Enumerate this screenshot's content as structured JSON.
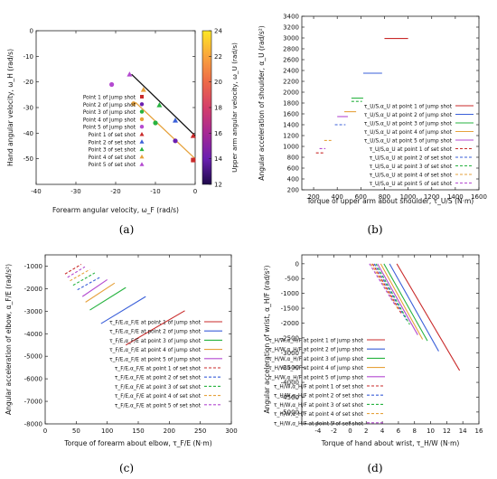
{
  "captions": [
    "(a)",
    "(b)",
    "(c)",
    "(d)"
  ],
  "chart_data": [
    {
      "type": "scatter",
      "panel": "(a)",
      "xlabel": "Forearm angular velocity, ω_F (rad/s)",
      "ylabel": "Hand angular velocity, ω_H (rad/s)",
      "xlim": [
        -40,
        0
      ],
      "ylim": [
        -60,
        0
      ],
      "xticks": [
        "-40",
        "-30",
        "-20",
        "-10",
        "0"
      ],
      "yticks": [
        "-50",
        "-40",
        "-30",
        "-20",
        "-10",
        "0"
      ],
      "colorbar": {
        "label": "Upper arm angular velocity, ω_U (rad/s)",
        "range": [
          12,
          24
        ],
        "ticks": [
          "24",
          "22",
          "20",
          "18",
          "16",
          "14",
          "12"
        ],
        "colors": [
          "#fde725",
          "#f9a43d",
          "#ed6a48",
          "#d43f6a",
          "#a62895",
          "#6a1fb0",
          "#1e0a4a"
        ]
      },
      "lines": [
        {
          "color": "#111111",
          "points": [
            [
              -16,
              -17
            ],
            [
              0,
              -41
            ]
          ]
        },
        {
          "color": "#e6a23c",
          "points": [
            [
              -15,
              -28
            ],
            [
              0,
              -50
            ]
          ]
        }
      ],
      "series": [
        {
          "name": "Point 1 of jump shot",
          "marker": "square",
          "color": "#c92a2a",
          "x": -0.5,
          "y": -50.5
        },
        {
          "name": "Point 2 of jump shot",
          "marker": "circle",
          "color": "#6a1fb0",
          "x": -5,
          "y": -43
        },
        {
          "name": "Point 3 of jump shot",
          "marker": "circle",
          "color": "#27b340",
          "x": -10,
          "y": -36
        },
        {
          "name": "Point 4 of jump shot",
          "marker": "circle",
          "color": "#e6a23c",
          "x": -15.5,
          "y": -28.5
        },
        {
          "name": "Point 5 of jump shot",
          "marker": "circle",
          "color": "#b44ad0",
          "x": -21,
          "y": -21
        },
        {
          "name": "Point 1 of set shot",
          "marker": "triangle",
          "color": "#c92a2a",
          "x": -0.5,
          "y": -41
        },
        {
          "name": "Point 2 of set shot",
          "marker": "triangle",
          "color": "#3a5fd9",
          "x": -5,
          "y": -35
        },
        {
          "name": "Point 3 of set shot",
          "marker": "triangle",
          "color": "#27b340",
          "x": -9,
          "y": -29
        },
        {
          "name": "Point 4 of set shot",
          "marker": "triangle",
          "color": "#e6a23c",
          "x": -13,
          "y": -23
        },
        {
          "name": "Point 5 of set shot",
          "marker": "triangle",
          "color": "#b44ad0",
          "x": -16.5,
          "y": -17
        }
      ]
    },
    {
      "type": "line",
      "panel": "(b)",
      "xlabel": "Torque of upper arm about shoulder, τ_U/S (N·m)",
      "ylabel": "Angular acceleration of shoulder, α_U (rad/s²)",
      "xlim": [
        100,
        1600
      ],
      "ylim": [
        200,
        3400
      ],
      "xticks": [
        "200",
        "400",
        "600",
        "800",
        "1000",
        "1200",
        "1400",
        "1600"
      ],
      "yticks": [
        "200",
        "400",
        "600",
        "800",
        "1000",
        "1200",
        "1400",
        "1600",
        "1800",
        "2000",
        "2200",
        "2400",
        "2600",
        "2800",
        "3000",
        "3200",
        "3400"
      ],
      "legend": "right",
      "series": [
        {
          "name": "τ_U/S,α_U at point 1 of jump shot",
          "color": "#c92a2a",
          "dash": false,
          "points": [
            [
              800,
              2990
            ],
            [
              1000,
              2990
            ]
          ]
        },
        {
          "name": "τ_U/S,α_U at point 2 of jump shot",
          "color": "#3a5fd9",
          "dash": false,
          "points": [
            [
              620,
              2350
            ],
            [
              780,
              2350
            ]
          ]
        },
        {
          "name": "τ_U/S,α_U at point 3 of jump shot",
          "color": "#27b340",
          "dash": false,
          "points": [
            [
              520,
              1890
            ],
            [
              620,
              1890
            ]
          ]
        },
        {
          "name": "τ_U/S,α_U at point 4 of jump shot",
          "color": "#e6a23c",
          "dash": false,
          "points": [
            [
              460,
              1640
            ],
            [
              560,
              1640
            ]
          ]
        },
        {
          "name": "τ_U/S,α_U at point 5 of jump shot",
          "color": "#b44ad0",
          "dash": false,
          "points": [
            [
              400,
              1550
            ],
            [
              490,
              1550
            ]
          ]
        },
        {
          "name": "τ_U/S,α_U at point 1 of set shot",
          "color": "#c92a2a",
          "dash": true,
          "points": [
            [
              220,
              880
            ],
            [
              290,
              880
            ]
          ]
        },
        {
          "name": "τ_U/S,α_U at point 2 of set shot",
          "color": "#3a5fd9",
          "dash": true,
          "points": [
            [
              380,
              1400
            ],
            [
              470,
              1400
            ]
          ]
        },
        {
          "name": "τ_U/S,α_U at point 3 of set shot",
          "color": "#27b340",
          "dash": true,
          "points": [
            [
              520,
              1830
            ],
            [
              610,
              1830
            ]
          ]
        },
        {
          "name": "τ_U/S,α_U at point 4 of set shot",
          "color": "#e6a23c",
          "dash": true,
          "points": [
            [
              290,
              1110
            ],
            [
              350,
              1110
            ]
          ]
        },
        {
          "name": "τ_U/S,α_U at point 5 of set shot",
          "color": "#b44ad0",
          "dash": true,
          "points": [
            [
              250,
              960
            ],
            [
              300,
              960
            ]
          ]
        }
      ]
    },
    {
      "type": "line",
      "panel": "(c)",
      "xlabel": "Torque of forearm about elbow, τ_F/E (N·m)",
      "ylabel": "Angular acceleration of elbow, α_F/E (rad/s²)",
      "xlim": [
        0,
        300
      ],
      "ylim": [
        -8000,
        -500
      ],
      "xticks": [
        "0",
        "50",
        "100",
        "150",
        "200",
        "250",
        "300"
      ],
      "yticks": [
        "-1000",
        "-2000",
        "-3000",
        "-4000",
        "-5000",
        "-6000",
        "-7000",
        "-8000"
      ],
      "legend": "lower-right",
      "series": [
        {
          "name": "τ_F/E,α_F/E at point 1 of jump shot",
          "color": "#c92a2a",
          "dash": false,
          "points": [
            [
              130,
              -4500
            ],
            [
              225,
              -2980
            ]
          ]
        },
        {
          "name": "τ_F/E,α_F/E at point 2 of jump shot",
          "color": "#3a5fd9",
          "dash": false,
          "points": [
            [
              90,
              -3550
            ],
            [
              162,
              -2350
            ]
          ]
        },
        {
          "name": "τ_F/E,α_F/E at point 3 of jump shot",
          "color": "#27b340",
          "dash": false,
          "points": [
            [
              72,
              -2950
            ],
            [
              130,
              -1950
            ]
          ]
        },
        {
          "name": "τ_F/E,α_F/E at point 4 of jump shot",
          "color": "#e6a23c",
          "dash": false,
          "points": [
            [
              65,
              -2600
            ],
            [
              112,
              -1750
            ]
          ]
        },
        {
          "name": "τ_F/E,α_F/E at point 5 of jump shot",
          "color": "#b44ad0",
          "dash": false,
          "points": [
            [
              60,
              -2350
            ],
            [
              100,
              -1600
            ]
          ]
        },
        {
          "name": "τ_F/E,α_F/E at point 1 of set shot",
          "color": "#c92a2a",
          "dash": true,
          "points": [
            [
              32,
              -1350
            ],
            [
              58,
              -920
            ]
          ]
        },
        {
          "name": "τ_F/E,α_F/E at point 2 of set shot",
          "color": "#3a5fd9",
          "dash": true,
          "points": [
            [
              52,
              -2050
            ],
            [
              88,
              -1500
            ]
          ]
        },
        {
          "name": "τ_F/E,α_F/E at point 3 of set shot",
          "color": "#27b340",
          "dash": true,
          "points": [
            [
              45,
              -1850
            ],
            [
              80,
              -1300
            ]
          ]
        },
        {
          "name": "τ_F/E,α_F/E at point 4 of set shot",
          "color": "#e6a23c",
          "dash": true,
          "points": [
            [
              40,
              -1650
            ],
            [
              72,
              -1150
            ]
          ]
        },
        {
          "name": "τ_F/E,α_F/E at point 5 of set shot",
          "color": "#b44ad0",
          "dash": true,
          "points": [
            [
              36,
              -1500
            ],
            [
              64,
              -1030
            ]
          ]
        }
      ]
    },
    {
      "type": "line",
      "panel": "(d)",
      "xlabel": "Torque of hand about wrist, τ_H/W (N·m)",
      "ylabel": "Angular acceleration of wrist, α_H/F (rad/s²)",
      "xlim": [
        -6,
        16
      ],
      "ylim": [
        -5400,
        300
      ],
      "xticks": [
        "-4",
        "-2",
        "0",
        "2",
        "4",
        "6",
        "8",
        "10",
        "12",
        "14",
        "16"
      ],
      "yticks": [
        "0",
        "-500",
        "-1000",
        "-1500",
        "-2000",
        "-2500",
        "-3000",
        "-3500",
        "-4000",
        "-4500",
        "-5000"
      ],
      "legend": "lower-left",
      "series": [
        {
          "name": "τ_H/W,α_H/F at point 1 of jump shot",
          "color": "#c92a2a",
          "dash": false,
          "points": [
            [
              5.8,
              0
            ],
            [
              13.6,
              -3600
            ]
          ]
        },
        {
          "name": "τ_H/W,α_H/F at point 2 of jump shot",
          "color": "#3a5fd9",
          "dash": false,
          "points": [
            [
              4.9,
              0
            ],
            [
              11.0,
              -2950
            ]
          ]
        },
        {
          "name": "τ_H/W,α_H/F at point 3 of jump shot",
          "color": "#27b340",
          "dash": false,
          "points": [
            [
              4.2,
              0
            ],
            [
              9.6,
              -2600
            ]
          ]
        },
        {
          "name": "τ_H/W,α_H/F at point 4 of jump shot",
          "color": "#e6a23c",
          "dash": false,
          "points": [
            [
              3.8,
              0
            ],
            [
              9.0,
              -2550
            ]
          ]
        },
        {
          "name": "τ_H/W,α_H/F at point 5 of jump shot",
          "color": "#b44ad0",
          "dash": false,
          "points": [
            [
              3.4,
              0
            ],
            [
              8.4,
              -2400
            ]
          ]
        },
        {
          "name": "τ_H/W,α_H/F at point 1 of set shot",
          "color": "#c92a2a",
          "dash": true,
          "points": [
            [
              2.8,
              0
            ],
            [
              6.4,
              -1700
            ]
          ]
        },
        {
          "name": "τ_H/W,α_H/F at point 2 of set shot",
          "color": "#3a5fd9",
          "dash": true,
          "points": [
            [
              3.0,
              0
            ],
            [
              7.0,
              -1900
            ]
          ]
        },
        {
          "name": "τ_H/W,α_H/F at point 3 of set shot",
          "color": "#27b340",
          "dash": true,
          "points": [
            [
              3.2,
              0
            ],
            [
              7.4,
              -2050
            ]
          ]
        },
        {
          "name": "τ_H/W,α_H/F at point 4 of set shot",
          "color": "#e6a23c",
          "dash": true,
          "points": [
            [
              2.6,
              0
            ],
            [
              6.0,
              -1550
            ]
          ]
        },
        {
          "name": "τ_H/W,α_H/F at point 5 of set shot",
          "color": "#b44ad0",
          "dash": true,
          "points": [
            [
              2.4,
              0
            ],
            [
              5.6,
              -1400
            ]
          ]
        }
      ]
    }
  ]
}
